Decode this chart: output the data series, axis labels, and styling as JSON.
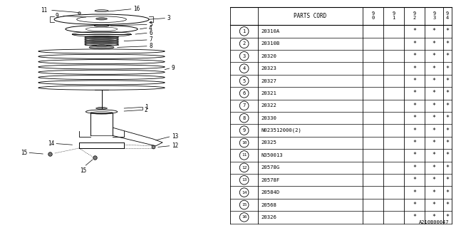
{
  "rows": [
    [
      "1",
      "20310A"
    ],
    [
      "2",
      "20310B"
    ],
    [
      "3",
      "20320"
    ],
    [
      "4",
      "20323"
    ],
    [
      "5",
      "20327"
    ],
    [
      "6",
      "20321"
    ],
    [
      "7",
      "20322"
    ],
    [
      "8",
      "20330"
    ],
    [
      "9",
      "N023512000(2)"
    ],
    [
      "10",
      "20325"
    ],
    [
      "11",
      "N350013"
    ],
    [
      "12",
      "20578G"
    ],
    [
      "13",
      "20578F"
    ],
    [
      "14",
      "20584D"
    ],
    [
      "15",
      "20568"
    ],
    [
      "16",
      "20326"
    ]
  ],
  "col_headers": [
    "9\n0",
    "9\n1",
    "9\n2",
    "9\n3",
    "9\n4"
  ],
  "stars": [
    0,
    0,
    1,
    1,
    1
  ],
  "diagram_label": "A210B00047",
  "bg_color": "#ffffff",
  "line_color": "#000000",
  "text_color": "#000000"
}
